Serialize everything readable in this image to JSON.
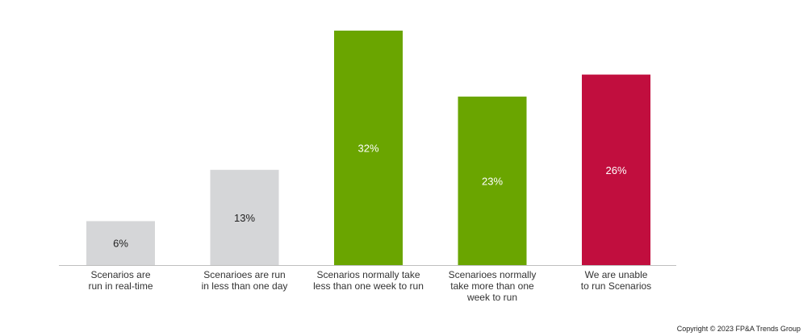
{
  "chart_data": {
    "type": "bar",
    "title": "",
    "xlabel": "",
    "ylabel": "",
    "ylim": [
      0,
      32
    ],
    "grid": false,
    "legend": "none",
    "categories": [
      [
        "Scenarios are",
        "run in real-time"
      ],
      [
        "Scenarioes are run",
        "in less than one day"
      ],
      [
        "Scenarios normally take",
        "less than one week to run"
      ],
      [
        "Scenarioes normally",
        "take more than one",
        "week to run"
      ],
      [
        "We are unable",
        "to run Scenarios"
      ]
    ],
    "values": [
      6,
      13,
      32,
      23,
      26
    ],
    "value_labels": [
      "6%",
      "13%",
      "32%",
      "23%",
      "26%"
    ],
    "colors": [
      "#d5d6d8",
      "#d5d6d8",
      "#6aa500",
      "#6aa500",
      "#c10e3e"
    ],
    "label_colors": [
      "#222222",
      "#222222",
      "#ffffff",
      "#ffffff",
      "#ffffff"
    ]
  },
  "footer": {
    "copyright": "Copyright © 2023 FP&A Trends Group"
  }
}
